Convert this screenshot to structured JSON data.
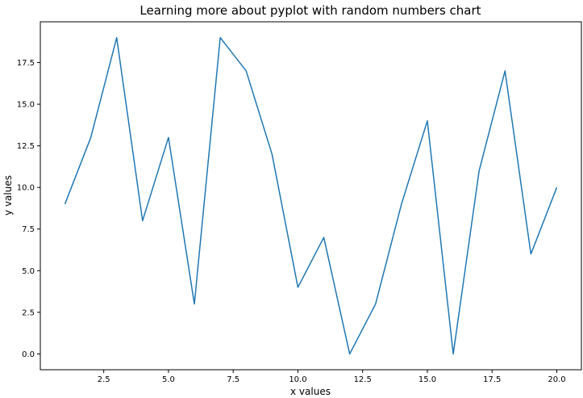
{
  "chart_data": {
    "type": "line",
    "title": "Learning more about pyplot with random numbers chart",
    "xlabel": "x values",
    "ylabel": "y values",
    "x": [
      1,
      2,
      3,
      4,
      5,
      6,
      7,
      8,
      9,
      10,
      11,
      12,
      13,
      14,
      15,
      16,
      17,
      18,
      19,
      20
    ],
    "series": [
      {
        "values": [
          9,
          13,
          19,
          8,
          13,
          3,
          19,
          17,
          12,
          4,
          7,
          0,
          3,
          9,
          14,
          0,
          11,
          17,
          6,
          10
        ]
      }
    ],
    "xlim": [
      0.05,
      20.95
    ],
    "ylim": [
      -0.95,
      19.95
    ],
    "xticks": [
      2.5,
      5.0,
      7.5,
      10.0,
      12.5,
      15.0,
      17.5,
      20.0
    ],
    "xtick_labels": [
      "2.5",
      "5.0",
      "7.5",
      "10.0",
      "12.5",
      "15.0",
      "17.5",
      "20.0"
    ],
    "yticks": [
      0.0,
      2.5,
      5.0,
      7.5,
      10.0,
      12.5,
      15.0,
      17.5
    ],
    "ytick_labels": [
      "0.0",
      "2.5",
      "5.0",
      "7.5",
      "10.0",
      "12.5",
      "15.0",
      "17.5"
    ],
    "grid": false,
    "line_color": "#1f77b4"
  }
}
